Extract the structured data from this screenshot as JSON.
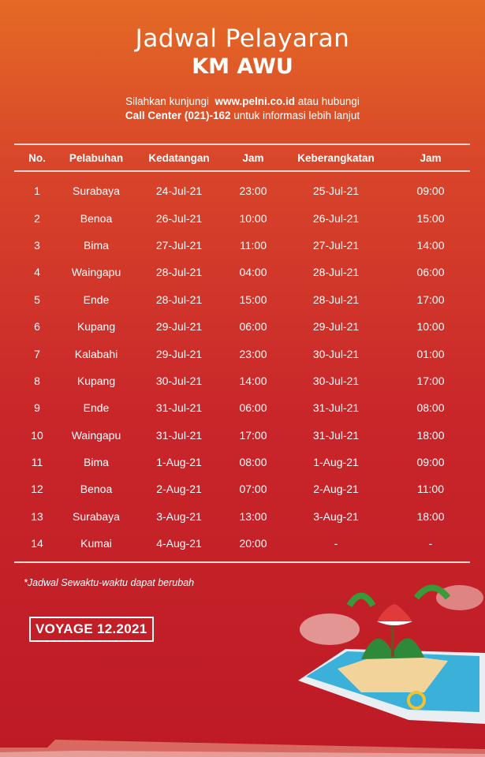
{
  "header": {
    "title": "Jadwal Pelayaran",
    "ship_name": "KM AWU"
  },
  "info": {
    "line1_pre": "Silahkan kunjungi",
    "website": "www.pelni.co.id",
    "line1_post": "atau hubungi",
    "call_center": "Call Center (021)-162",
    "line2_post": "untuk informasi lebih lanjut"
  },
  "table": {
    "headers": [
      "No.",
      "Pelabuhan",
      "Kedatangan",
      "Jam",
      "Keberangkatan",
      "Jam"
    ],
    "rows": [
      [
        "1",
        "Surabaya",
        "24-Jul-21",
        "23:00",
        "25-Jul-21",
        "09:00"
      ],
      [
        "2",
        "Benoa",
        "26-Jul-21",
        "10:00",
        "26-Jul-21",
        "15:00"
      ],
      [
        "3",
        "Bima",
        "27-Jul-21",
        "11:00",
        "27-Jul-21",
        "14:00"
      ],
      [
        "4",
        "Waingapu",
        "28-Jul-21",
        "04:00",
        "28-Jul-21",
        "06:00"
      ],
      [
        "5",
        "Ende",
        "28-Jul-21",
        "15:00",
        "28-Jul-21",
        "17:00"
      ],
      [
        "6",
        "Kupang",
        "29-Jul-21",
        "06:00",
        "29-Jul-21",
        "10:00"
      ],
      [
        "7",
        "Kalabahi",
        "29-Jul-21",
        "23:00",
        "30-Jul-21",
        "01:00"
      ],
      [
        "8",
        "Kupang",
        "30-Jul-21",
        "14:00",
        "30-Jul-21",
        "17:00"
      ],
      [
        "9",
        "Ende",
        "31-Jul-21",
        "06:00",
        "31-Jul-21",
        "08:00"
      ],
      [
        "10",
        "Waingapu",
        "31-Jul-21",
        "17:00",
        "31-Jul-21",
        "18:00"
      ],
      [
        "11",
        "Bima",
        "1-Aug-21",
        "08:00",
        "1-Aug-21",
        "09:00"
      ],
      [
        "12",
        "Benoa",
        "2-Aug-21",
        "07:00",
        "2-Aug-21",
        "11:00"
      ],
      [
        "13",
        "Surabaya",
        "3-Aug-21",
        "13:00",
        "3-Aug-21",
        "18:00"
      ],
      [
        "14",
        "Kumai",
        "4-Aug-21",
        "20:00",
        "-",
        "-"
      ]
    ]
  },
  "note": "*Jadwal Sewaktu-waktu dapat berubah",
  "voyage": "VOYAGE 12.2021",
  "colors": {
    "background_top": "#e46a25",
    "background_bottom": "#bd1a26",
    "text": "#ffffff"
  }
}
